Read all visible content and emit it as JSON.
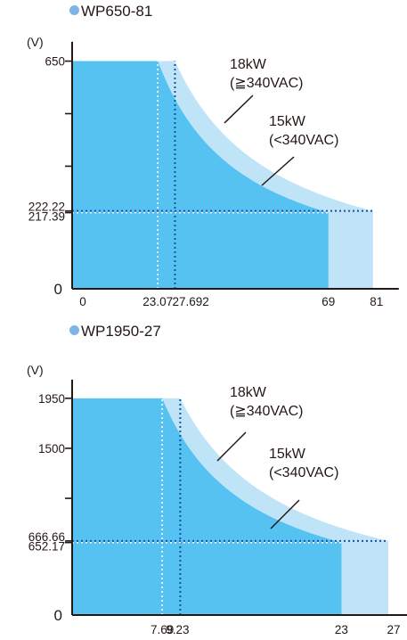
{
  "colors": {
    "max_region": "#55c2f1",
    "ext_region": "#bfe4f8",
    "axis": "#231815",
    "blue_guide": "#1a4fa3",
    "white_guide": "#ffffff",
    "bullet": "#7fb4e6"
  },
  "chart_data": [
    {
      "type": "area",
      "title": "WP650-81",
      "ylabel": "(V)",
      "xlabel": "",
      "xlim": [
        0,
        87
      ],
      "ylim": [
        0,
        690
      ],
      "x_ticks": [
        "0",
        "23.07",
        "27.692",
        "69",
        "81"
      ],
      "y_ticks": [
        "0",
        "217.39",
        "222.22",
        "650"
      ],
      "series": [
        {
          "name": "18kW",
          "condition": "(≧340VAC)",
          "power_kw": 18,
          "vmax": 650,
          "imax": 81,
          "corner": [
            27.692,
            650
          ],
          "end": [
            81,
            222.22
          ]
        },
        {
          "name": "15kW",
          "condition": "(<340VAC)",
          "power_kw": 15,
          "vmax": 650,
          "imax": 69,
          "corner": [
            23.07,
            650
          ],
          "end": [
            69,
            217.39
          ]
        }
      ]
    },
    {
      "type": "area",
      "title": "WP1950-27",
      "ylabel": "(V)",
      "xlabel": "",
      "xlim": [
        0,
        29
      ],
      "ylim": [
        0,
        2070
      ],
      "x_ticks": [
        "7.69",
        "9.23",
        "23",
        "27"
      ],
      "y_ticks": [
        "0",
        "652.17",
        "666.66",
        "1500",
        "1950"
      ],
      "series": [
        {
          "name": "18kW",
          "condition": "(≧340VAC)",
          "power_kw": 18,
          "vmax": 1950,
          "imax": 27,
          "corner": [
            9.23,
            1950
          ],
          "end": [
            27,
            666.66
          ]
        },
        {
          "name": "15kW",
          "condition": "(<340VAC)",
          "power_kw": 15,
          "vmax": 1950,
          "imax": 23,
          "corner": [
            7.69,
            1950
          ],
          "end": [
            23,
            652.17
          ]
        }
      ]
    }
  ]
}
